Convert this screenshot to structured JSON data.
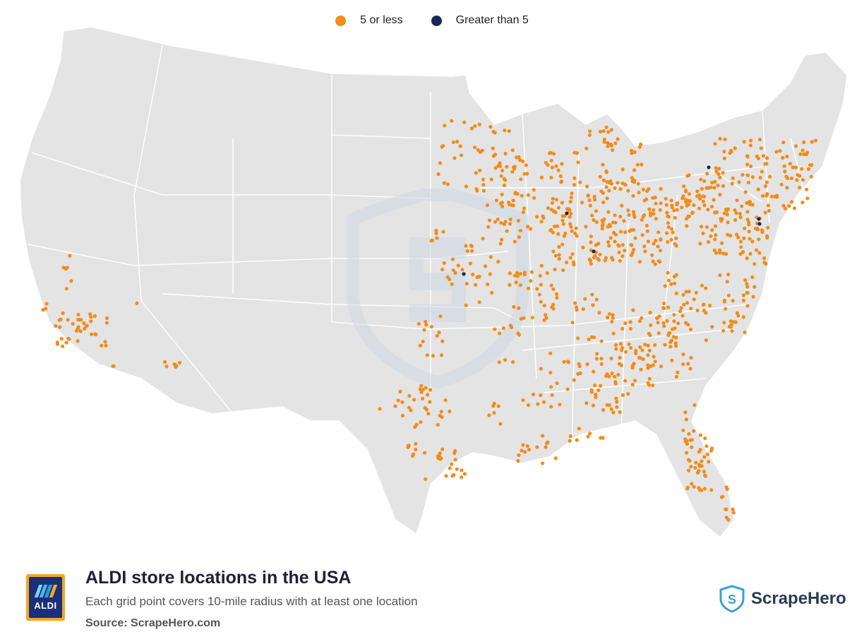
{
  "legend": {
    "items": [
      {
        "label": "5 or less",
        "color": "#f28c1a"
      },
      {
        "label": "Greater than 5",
        "color": "#1c2757"
      }
    ]
  },
  "map": {
    "land_color": "#e4e4e4",
    "border_color": "#ffffff",
    "watermark_color": "#d6e0e8"
  },
  "footer": {
    "title": "ALDI store locations in the USA",
    "subtitle": "Each grid point covers 10-mile radius with at least one location",
    "source": "Source: ScrapeHero.com",
    "logo_text": "ALDI",
    "brand": "ScrapeHero"
  }
}
